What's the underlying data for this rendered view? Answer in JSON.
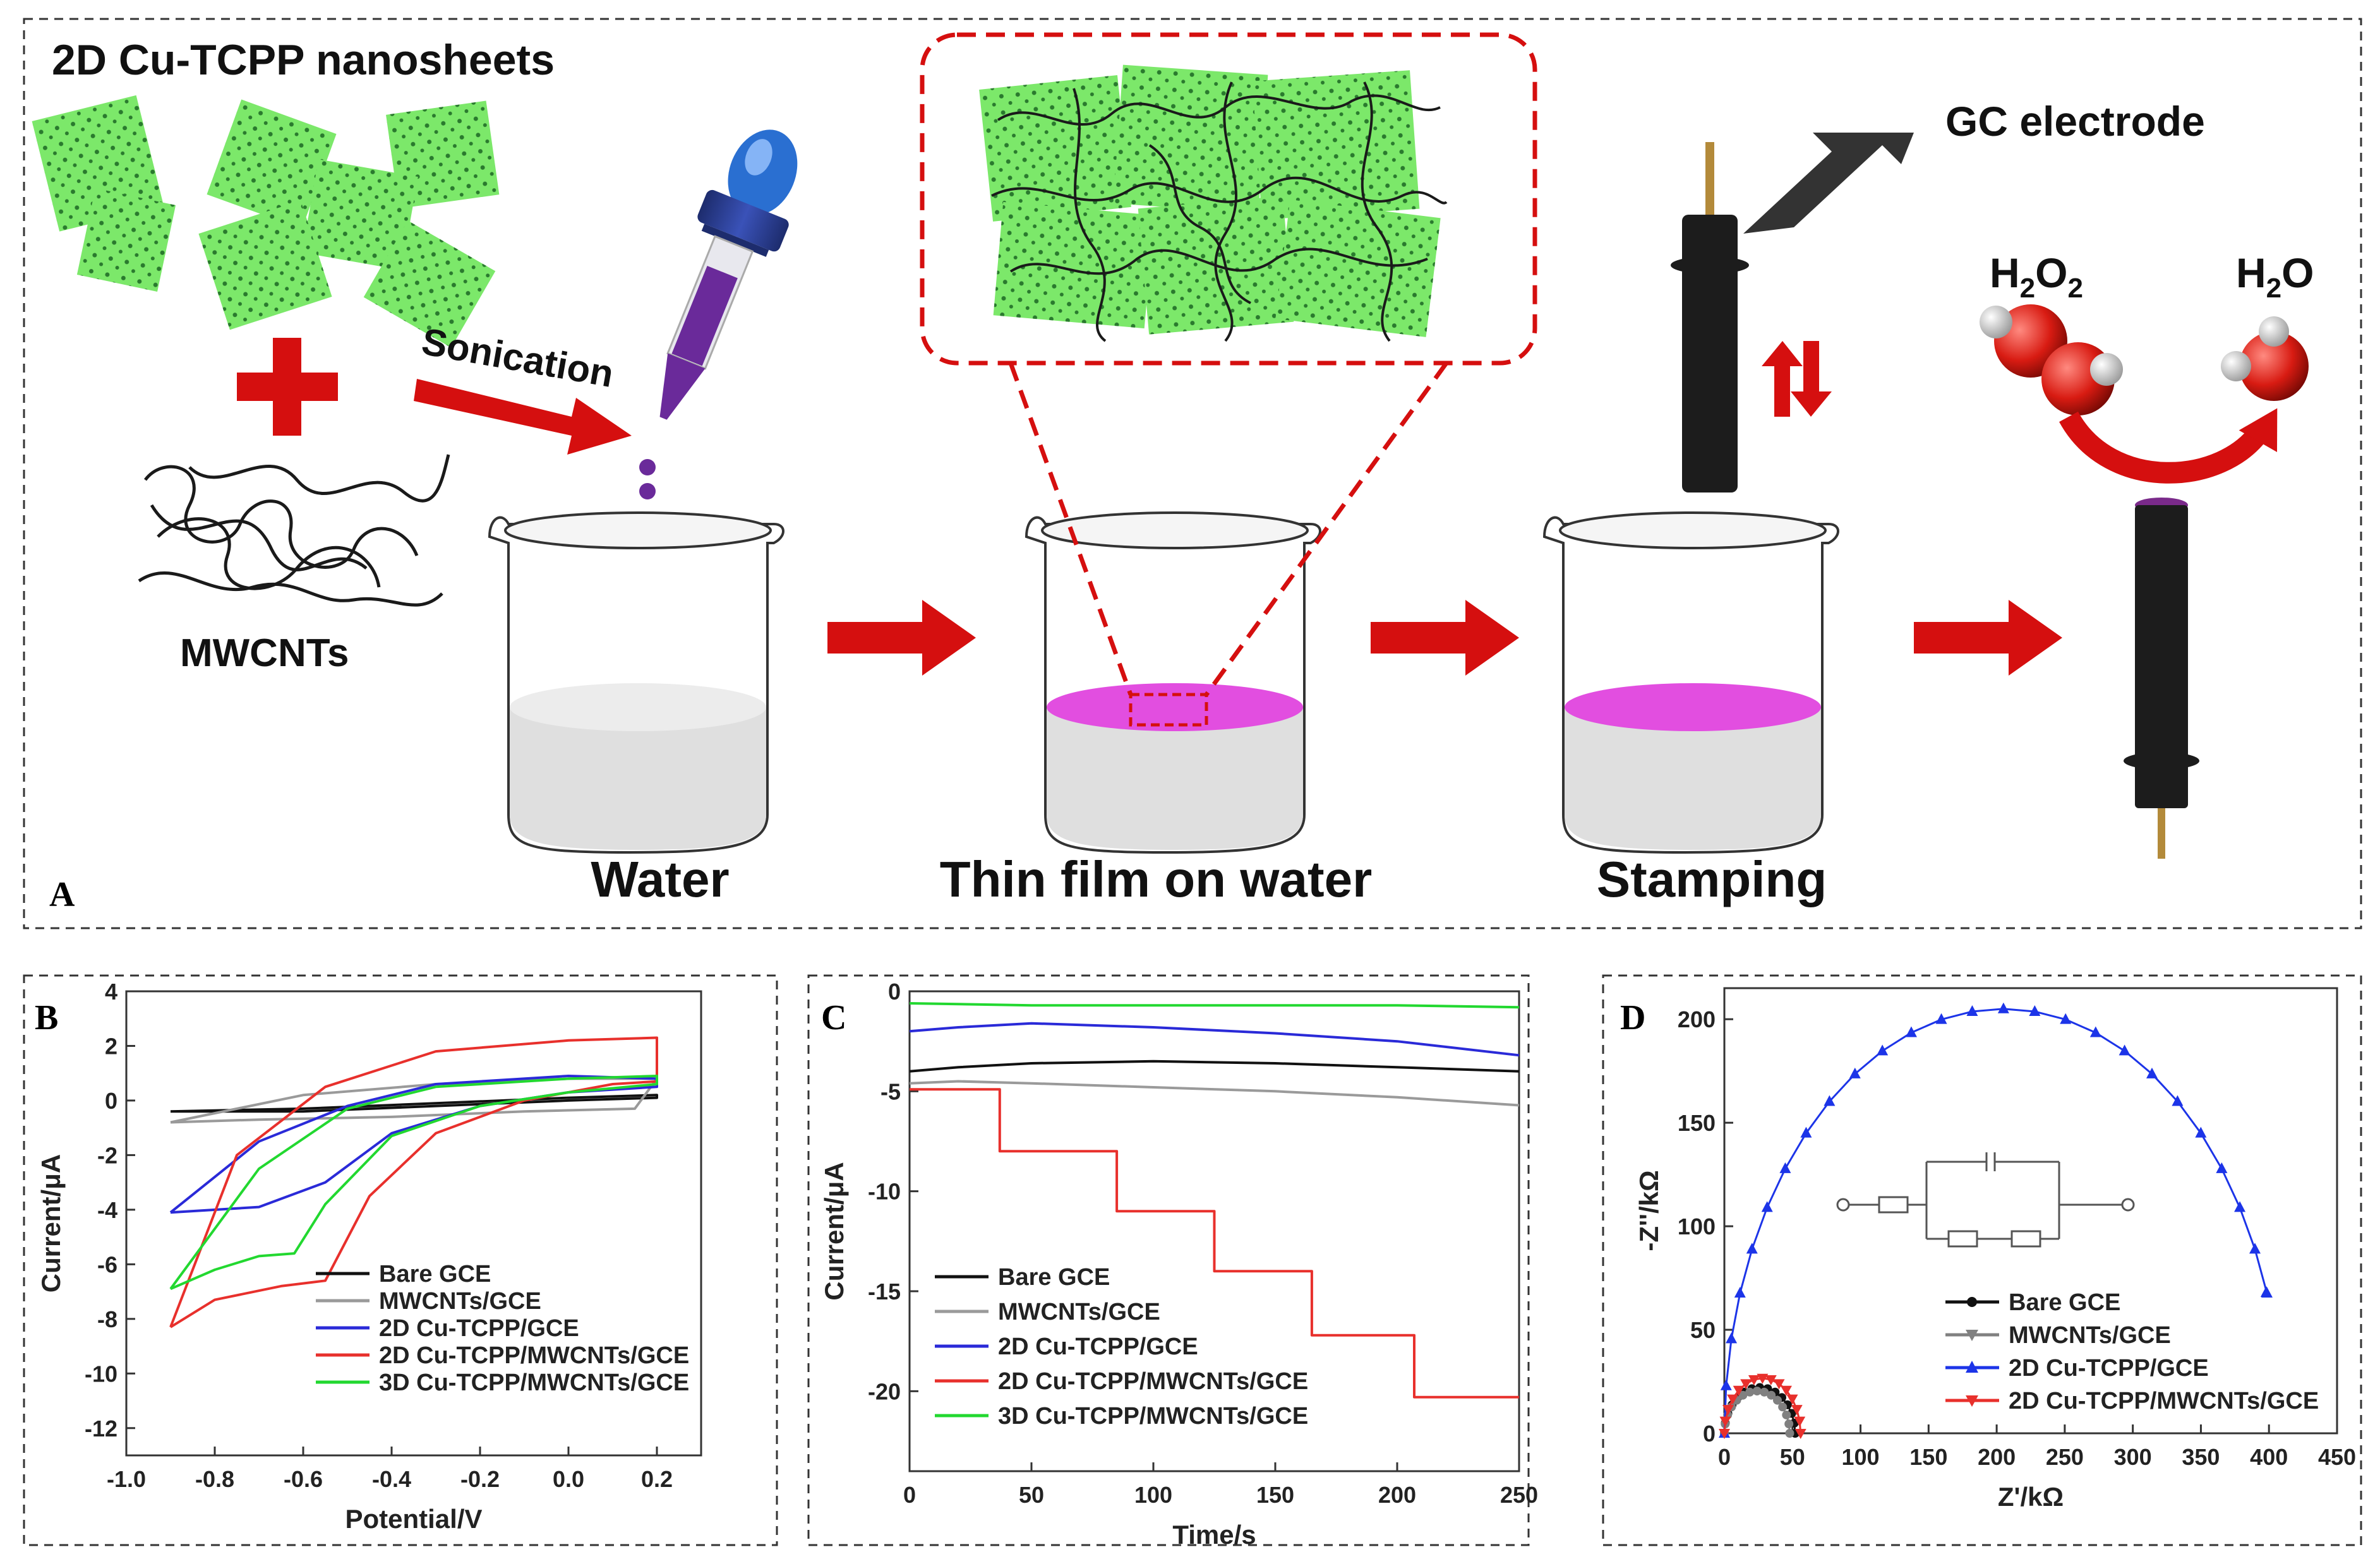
{
  "schematic": {
    "panel_label": "A",
    "nanosheets_label": "2D Cu-TCPP nanosheets",
    "mwcnts_label": "MWCNTs",
    "sonication_label": "Sonication",
    "gc_electrode_label": "GC electrode",
    "h2o2_label": "H",
    "h2o2_sub1": "2",
    "h2o2_mid": "O",
    "h2o2_sub2": "2",
    "h2o_label": "H",
    "h2o_sub": "2",
    "h2o_tail": "O",
    "step_labels": [
      "Water",
      "Thin film on water",
      "Stamping"
    ],
    "colors": {
      "sheet": "#7ce86a",
      "film": "#e24ee0",
      "arrow": "#d50f0f",
      "electrode": "#1c1c1c"
    }
  },
  "chart_data": [
    {
      "panel": "B",
      "type": "line",
      "xlabel": "Potential/V",
      "ylabel": "Current/μA",
      "xlim": [
        -1.0,
        0.3
      ],
      "ylim": [
        -13,
        4
      ],
      "xticks": [
        "-1.0",
        "-0.8",
        "-0.6",
        "-0.4",
        "-0.2",
        "0.0",
        "0.2"
      ],
      "yticks": [
        "4",
        "2",
        "0",
        "-2",
        "-4",
        "-6",
        "-8",
        "-10",
        "-12"
      ],
      "legend": [
        "Bare GCE",
        "MWCNTs/GCE",
        "2D Cu-TCPP/GCE",
        "2D Cu-TCPP/MWCNTs/GCE",
        "3D Cu-TCPP/MWCNTs/GCE"
      ],
      "colors": [
        "#111111",
        "#9a9a9a",
        "#2a2ad8",
        "#e8302c",
        "#22d830"
      ],
      "series": [
        {
          "name": "Bare GCE",
          "x": [
            -0.9,
            -0.6,
            -0.3,
            0.0,
            0.2,
            0.2,
            0.0,
            -0.3,
            -0.6,
            -0.9
          ],
          "y": [
            -0.4,
            -0.3,
            -0.1,
            0.1,
            0.2,
            0.1,
            0.0,
            -0.2,
            -0.4,
            -0.4
          ]
        },
        {
          "name": "MWCNTs/GCE",
          "x": [
            -0.9,
            -0.7,
            -0.4,
            -0.1,
            0.15,
            0.2,
            0.0,
            -0.3,
            -0.6,
            -0.9
          ],
          "y": [
            -0.8,
            -0.7,
            -0.6,
            -0.4,
            -0.3,
            0.8,
            0.8,
            0.6,
            0.2,
            -0.8
          ]
        },
        {
          "name": "2D Cu-TCPP/GCE",
          "x": [
            -0.9,
            -0.7,
            -0.55,
            -0.4,
            -0.2,
            0.0,
            0.2,
            0.2,
            0.0,
            -0.3,
            -0.5,
            -0.7,
            -0.9
          ],
          "y": [
            -4.1,
            -3.9,
            -3.0,
            -1.2,
            -0.2,
            0.3,
            0.5,
            0.8,
            0.9,
            0.6,
            -0.2,
            -1.5,
            -4.1
          ]
        },
        {
          "name": "2D Cu-TCPP/MWCNTs/GCE",
          "x": [
            -0.9,
            -0.8,
            -0.65,
            -0.55,
            -0.45,
            -0.3,
            -0.1,
            0.1,
            0.2,
            0.2,
            0.0,
            -0.3,
            -0.55,
            -0.75,
            -0.9
          ],
          "y": [
            -8.3,
            -7.3,
            -6.8,
            -6.6,
            -3.5,
            -1.2,
            0.0,
            0.6,
            0.7,
            2.3,
            2.2,
            1.8,
            0.5,
            -2.0,
            -8.3
          ]
        },
        {
          "name": "3D Cu-TCPP/MWCNTs/GCE",
          "x": [
            -0.9,
            -0.8,
            -0.7,
            -0.62,
            -0.55,
            -0.4,
            -0.2,
            0.0,
            0.2,
            0.2,
            0.0,
            -0.3,
            -0.5,
            -0.7,
            -0.9
          ],
          "y": [
            -6.9,
            -6.2,
            -5.7,
            -5.6,
            -3.8,
            -1.3,
            -0.2,
            0.3,
            0.6,
            0.9,
            0.8,
            0.5,
            -0.3,
            -2.5,
            -6.9
          ]
        }
      ]
    },
    {
      "panel": "C",
      "type": "line",
      "xlabel": "Time/s",
      "ylabel": "Current/μA",
      "xlim": [
        0,
        250
      ],
      "ylim": [
        -24,
        0
      ],
      "xticks": [
        "0",
        "50",
        "100",
        "150",
        "200",
        "250"
      ],
      "yticks": [
        "0",
        "-5",
        "-10",
        "-15",
        "-20"
      ],
      "legend": [
        "Bare GCE",
        "MWCNTs/GCE",
        "2D Cu-TCPP/GCE",
        "2D Cu-TCPP/MWCNTs/GCE",
        "3D Cu-TCPP/MWCNTs/GCE"
      ],
      "colors": [
        "#111111",
        "#9a9a9a",
        "#2a2ad8",
        "#e8302c",
        "#22d830"
      ],
      "series": [
        {
          "name": "Bare GCE",
          "x": [
            0,
            20,
            50,
            100,
            150,
            200,
            250
          ],
          "y": [
            -4.0,
            -3.8,
            -3.6,
            -3.5,
            -3.6,
            -3.8,
            -4.0
          ]
        },
        {
          "name": "MWCNTs/GCE",
          "x": [
            0,
            20,
            50,
            100,
            150,
            200,
            250
          ],
          "y": [
            -4.6,
            -4.5,
            -4.6,
            -4.8,
            -5.0,
            -5.3,
            -5.7
          ]
        },
        {
          "name": "2D Cu-TCPP/GCE",
          "x": [
            0,
            20,
            50,
            100,
            150,
            200,
            250
          ],
          "y": [
            -2.0,
            -1.8,
            -1.6,
            -1.8,
            -2.1,
            -2.5,
            -3.2
          ]
        },
        {
          "name": "2D Cu-TCPP/MWCNTs/GCE",
          "x": [
            0,
            37,
            37,
            85,
            85,
            125,
            125,
            165,
            165,
            207,
            207,
            250
          ],
          "y": [
            -4.9,
            -4.9,
            -8.0,
            -8.0,
            -11.0,
            -11.0,
            -14.0,
            -14.0,
            -17.2,
            -17.2,
            -20.3,
            -20.3
          ]
        },
        {
          "name": "3D Cu-TCPP/MWCNTs/GCE",
          "x": [
            0,
            50,
            100,
            150,
            200,
            250
          ],
          "y": [
            -0.6,
            -0.7,
            -0.7,
            -0.7,
            -0.7,
            -0.8
          ]
        }
      ]
    },
    {
      "panel": "D",
      "type": "scatter",
      "xlabel": "Z'/kΩ",
      "ylabel": "-Z''/kΩ",
      "xlim": [
        0,
        450
      ],
      "ylim": [
        0,
        215
      ],
      "xticks": [
        "0",
        "50",
        "100",
        "150",
        "200",
        "250",
        "300",
        "350",
        "400",
        "450"
      ],
      "yticks": [
        "0",
        "50",
        "100",
        "150",
        "200"
      ],
      "legend": [
        "Bare GCE",
        "MWCNTs/GCE",
        "2D Cu-TCPP/GCE",
        "2D Cu-TCPP/MWCNTs/GCE"
      ],
      "colors": [
        "#111111",
        "#808080",
        "#1c34e8",
        "#e8302c"
      ],
      "series": [
        {
          "name": "Bare GCE",
          "center": 26,
          "radius": 26,
          "y_scale": 0.85
        },
        {
          "name": "MWCNTs/GCE",
          "center": 24,
          "radius": 24,
          "y_scale": 0.85
        },
        {
          "name": "2D Cu-TCPP/GCE",
          "center": 205,
          "radius": 205,
          "y_scale": 1.0
        },
        {
          "name": "2D Cu-TCPP/MWCNTs/GCE",
          "center": 28,
          "radius": 28,
          "y_scale": 0.95
        }
      ]
    }
  ]
}
